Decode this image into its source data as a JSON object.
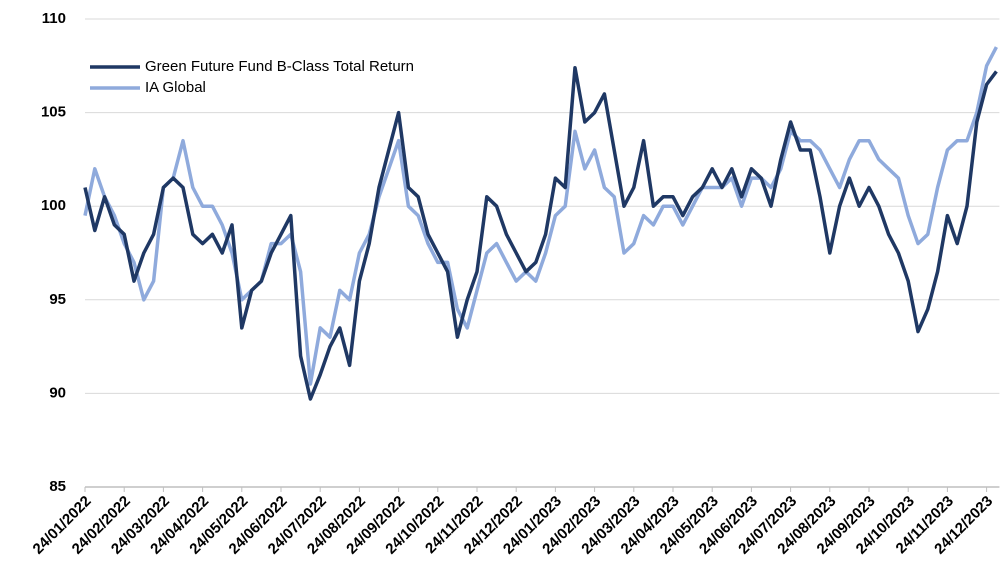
{
  "chart_data": {
    "type": "line",
    "categories": [
      "24/01/2022",
      null,
      null,
      null,
      "24/02/2022",
      null,
      null,
      null,
      "24/03/2022",
      null,
      null,
      null,
      "24/04/2022",
      null,
      null,
      null,
      "24/05/2022",
      null,
      null,
      null,
      "24/06/2022",
      null,
      null,
      null,
      "24/07/2022",
      null,
      null,
      null,
      "24/08/2022",
      null,
      null,
      null,
      "24/09/2022",
      null,
      null,
      null,
      "24/10/2022",
      null,
      null,
      null,
      "24/11/2022",
      null,
      null,
      null,
      "24/12/2022",
      null,
      null,
      null,
      "24/01/2023",
      null,
      null,
      null,
      "24/02/2023",
      null,
      null,
      null,
      "24/03/2023",
      null,
      null,
      null,
      "24/04/2023",
      null,
      null,
      null,
      "24/05/2023",
      null,
      null,
      null,
      "24/06/2023",
      null,
      null,
      null,
      "24/07/2023",
      null,
      null,
      null,
      "24/08/2023",
      null,
      null,
      null,
      "24/09/2023",
      null,
      null,
      null,
      "24/10/2023",
      null,
      null,
      null,
      "24/11/2023",
      null,
      null,
      null,
      "24/12/2023",
      null
    ],
    "series": [
      {
        "name": "Green Future Fund B-Class Total Return",
        "color": "#1f3864",
        "values": [
          101,
          98.7,
          100.5,
          99,
          98.5,
          96,
          97.5,
          98.5,
          101,
          101.5,
          101,
          98.5,
          98,
          98.5,
          97.5,
          99,
          93.5,
          95.5,
          96,
          97.5,
          98.5,
          99.5,
          92,
          89.7,
          91,
          92.5,
          93.5,
          91.5,
          96,
          98,
          101,
          103,
          105,
          101,
          100.5,
          98.5,
          97.5,
          96.5,
          93,
          95,
          96.5,
          100.5,
          100,
          98.5,
          97.5,
          96.5,
          97,
          98.5,
          101.5,
          101,
          107.4,
          104.5,
          105,
          106,
          103,
          100,
          101,
          103.5,
          100,
          100.5,
          100.5,
          99.5,
          100.5,
          101,
          102,
          101,
          102,
          100.5,
          102,
          101.5,
          100,
          102.5,
          104.5,
          103,
          103,
          100.5,
          97.5,
          100,
          101.5,
          100,
          101,
          100,
          98.5,
          97.5,
          96,
          93.3,
          94.5,
          96.5,
          99.5,
          98,
          100,
          104.5,
          106.5,
          107.2
        ]
      },
      {
        "name": "IA Global",
        "color": "#8faadc",
        "values": [
          99.5,
          102,
          100.5,
          99.5,
          98,
          97,
          95,
          96,
          101,
          101.5,
          103.5,
          101,
          100,
          100,
          99,
          97.5,
          95,
          95.5,
          96,
          98,
          98,
          98.5,
          96.5,
          90.5,
          93.5,
          93,
          95.5,
          95,
          97.5,
          98.5,
          100.5,
          102,
          103.5,
          100,
          99.5,
          98,
          97,
          97,
          94.5,
          93.5,
          95.5,
          97.5,
          98,
          97,
          96,
          96.5,
          96,
          97.5,
          99.5,
          100,
          104,
          102,
          103,
          101,
          100.5,
          97.5,
          98,
          99.5,
          99,
          100,
          100,
          99,
          100,
          101,
          101,
          101,
          101.5,
          100,
          101.5,
          101.5,
          101,
          102,
          104,
          103.5,
          103.5,
          103,
          102,
          101,
          102.5,
          103.5,
          103.5,
          102.5,
          102,
          101.5,
          99.5,
          98,
          98.5,
          101,
          103,
          103.5,
          103.5,
          105,
          107.5,
          108.5
        ]
      }
    ],
    "ylim": [
      85,
      110
    ],
    "yticks": [
      85,
      90,
      95,
      100,
      105,
      110
    ],
    "grid": true,
    "legend": "upper left"
  }
}
